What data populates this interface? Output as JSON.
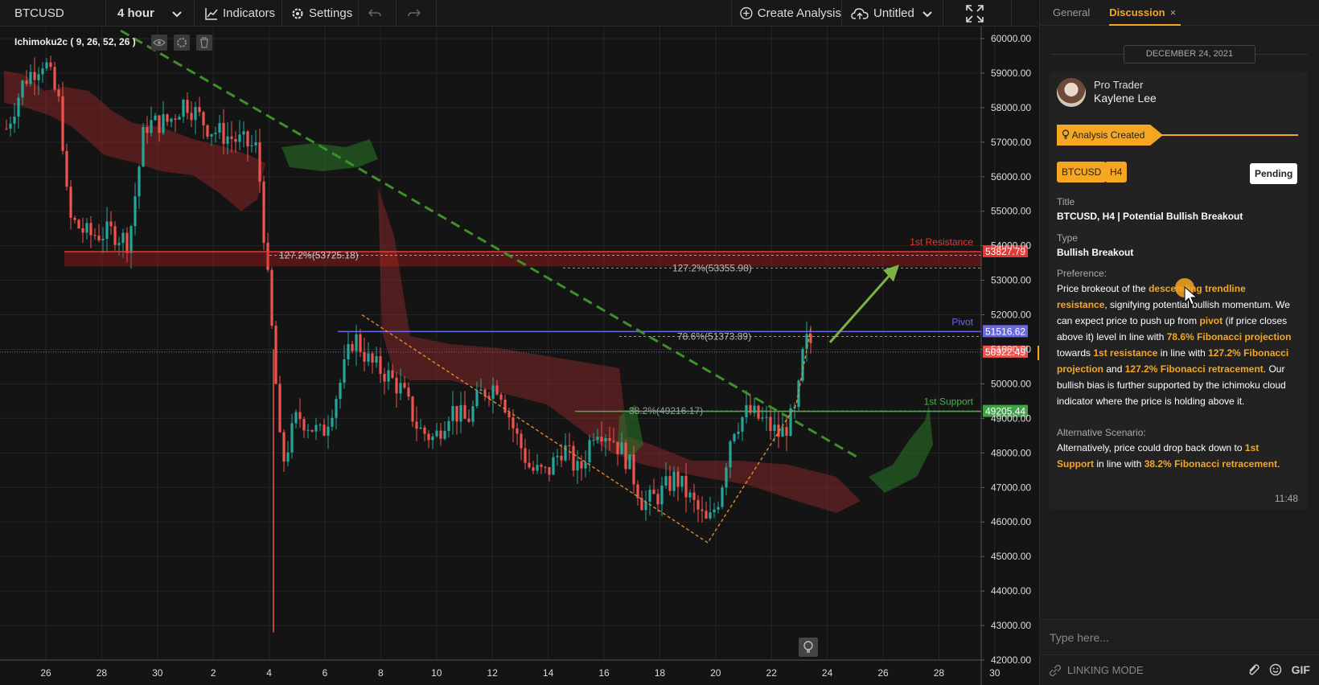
{
  "toolbar": {
    "symbol": "BTCUSD",
    "interval": "4 hour",
    "indicators_label": "Indicators",
    "settings_label": "Settings",
    "create_label": "Create Analysis",
    "layout_name": "Untitled"
  },
  "chart": {
    "indicator_label": "Ichimoku2c ( 9, 26, 52, 26 )",
    "price_axis": [
      "60000.00",
      "59000.00",
      "58000.00",
      "57000.00",
      "56000.00",
      "55000.00",
      "54000.00",
      "53000.00",
      "52000.00",
      "51000.00",
      "50000.00",
      "49000.00",
      "48000.00",
      "47000.00",
      "46000.00",
      "45000.00",
      "44000.00",
      "43000.00",
      "42000.00"
    ],
    "date_axis": [
      "26",
      "28",
      "30",
      "2",
      "4",
      "6",
      "8",
      "10",
      "12",
      "14",
      "16",
      "18",
      "20",
      "22",
      "24",
      "26",
      "28",
      "30"
    ],
    "price_tags": {
      "resistance": "53827.79",
      "pivot": "51516.62",
      "last": "50922.49",
      "support": "49205.44"
    },
    "line_labels": {
      "resistance": "1st Resistance",
      "pivot": "Pivot",
      "support": "1st Support"
    },
    "fib_labels": {
      "ext_left": "127.2%(53725.18)",
      "ext_right": "127.2%(53355.98)",
      "proj_786": "78.6%(51373.89)",
      "ret_382": "38.2%(49216.17)"
    },
    "colors": {
      "up": "#26a69a",
      "down": "#ef5350",
      "resistance": "#e53935",
      "pivot": "#6a6ae0",
      "support": "#4caf50",
      "trendline": "#3f8f2a",
      "fib": "#e08a2c"
    }
  },
  "panel": {
    "tabs": [
      "General",
      "Discussion"
    ],
    "close_icon": "×",
    "date": "DECEMBER 24, 2021",
    "role": "Pro Trader",
    "author": "Kaylene Lee",
    "event": "Analysis Created",
    "badges": [
      "BTCUSD",
      "H4"
    ],
    "status": "Pending",
    "title_label": "Title",
    "title_value": "BTCUSD, H4 | Potential Bullish Breakout",
    "type_label": "Type",
    "type_value": "Bullish Breakout",
    "pref_label": "Preference:",
    "pref_text": {
      "t1": "Price brokeout of the ",
      "h1": "descending trendline resistance",
      "t2": ", signifying potential bullish momentum. We can expect price to push up from ",
      "h2": "pivot",
      "t3": " (if price closes above it)  level in line with ",
      "h3": "78.6% Fibonacci projection",
      "t4": " towards ",
      "h4": "1st resistance",
      "t5": " in line with ",
      "h5": "127.2% Fibonacci projection",
      "t6": " and ",
      "h6": "127.2% Fibonacci retracement",
      "t7": ". Our bullish bias is further supported by the ichimoku cloud indicator where the price is holding above it."
    },
    "alt_label": "Alternative Scenario:",
    "alt_text": {
      "t1": "Alternatively, price could drop back down to ",
      "h1": "1st Support",
      "t2": " in line with ",
      "h2": "38.2% Fibonacci retracement",
      "t3": "."
    },
    "time": "11:48",
    "input_placeholder": "Type here...",
    "linking_mode": "LINKING MODE",
    "gif_label": "GIF"
  }
}
